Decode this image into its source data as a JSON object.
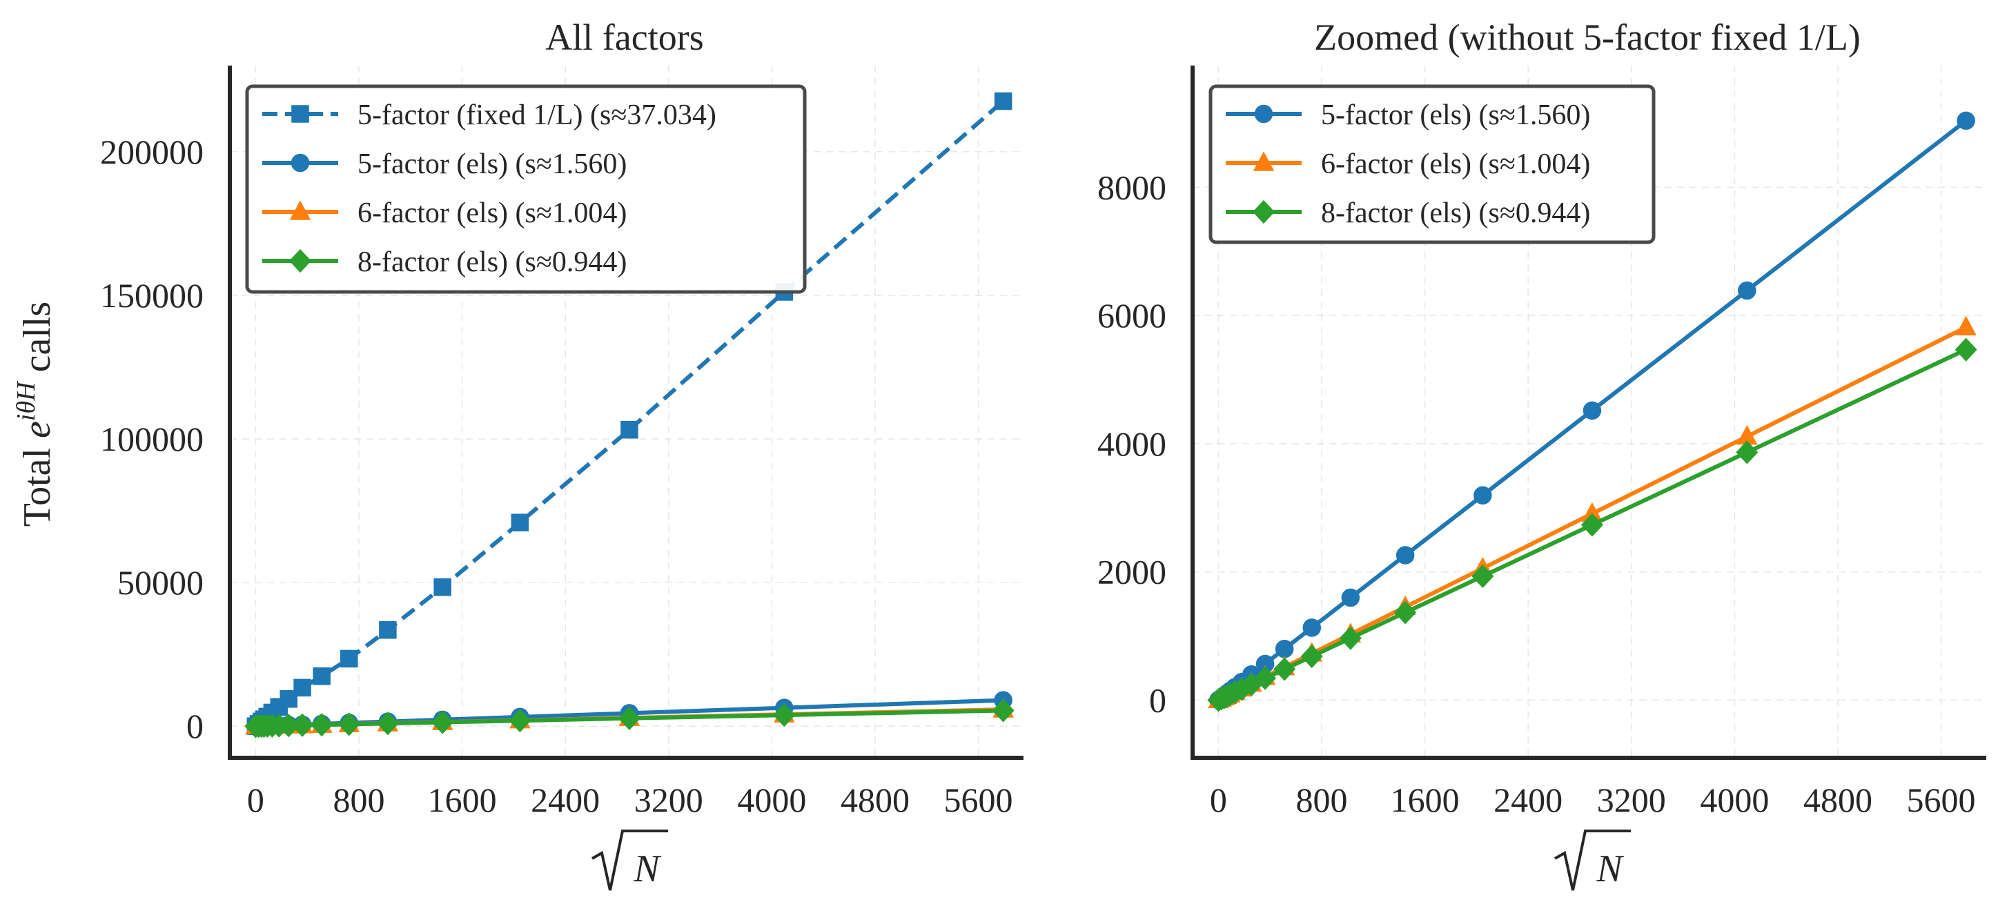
{
  "chart_data": [
    {
      "type": "line",
      "title": "All factors",
      "xlabel": "√N",
      "ylabel": "Total e^{iθH} calls",
      "xlim": [
        -200,
        5950
      ],
      "ylim": [
        -11000,
        230000
      ],
      "xticks": [
        0,
        800,
        1600,
        2400,
        3200,
        4000,
        4800,
        5600
      ],
      "xtick_labels": [
        "0",
        "800",
        "1600",
        "2400",
        "3200",
        "4000",
        "4800",
        "5600"
      ],
      "yticks": [
        0,
        50000,
        100000,
        150000,
        200000
      ],
      "ytick_labels": [
        "0",
        "50000",
        "100000",
        "150000",
        "200000"
      ],
      "grid": true,
      "legend_position": "top-left",
      "x": [
        0,
        22,
        45,
        64,
        90,
        128,
        181,
        256,
        362,
        512,
        724,
        1024,
        1448,
        2048,
        2896,
        4096,
        5793
      ],
      "series": [
        {
          "name": "5-factor (fixed 1/L) (s≈37.034)",
          "color": "#1f77b4",
          "marker": "square",
          "dashed": true,
          "values": [
            0,
            800,
            1650,
            2400,
            3340,
            4760,
            6700,
            9480,
            13400,
            17400,
            23500,
            33500,
            48400,
            70900,
            103200,
            151200,
            217600
          ]
        },
        {
          "name": "5-factor (els) (s≈1.560)",
          "color": "#1f77b4",
          "marker": "circle",
          "dashed": false,
          "values": [
            0,
            34,
            70,
            100,
            140,
            200,
            282,
            400,
            565,
            799,
            1130,
            1598,
            2260,
            3195,
            4518,
            6390,
            9040
          ]
        },
        {
          "name": "6-factor (els) (s≈1.004)",
          "color": "#ff7f0e",
          "marker": "triangle",
          "dashed": false,
          "values": [
            0,
            22,
            45,
            64,
            90,
            128,
            182,
            257,
            363,
            514,
            727,
            1028,
            1454,
            2056,
            2908,
            4112,
            5816
          ]
        },
        {
          "name": "8-factor (els) (s≈0.944)",
          "color": "#2ca02c",
          "marker": "diamond",
          "dashed": false,
          "values": [
            0,
            21,
            42,
            60,
            85,
            121,
            171,
            242,
            342,
            483,
            683,
            967,
            1367,
            1933,
            2734,
            3866,
            5468
          ]
        }
      ]
    },
    {
      "type": "line",
      "title": "Zoomed (without 5-factor fixed 1/L)",
      "xlabel": "√N",
      "ylabel": "",
      "xlim": [
        -200,
        5950
      ],
      "ylim": [
        -900,
        9900
      ],
      "xticks": [
        0,
        800,
        1600,
        2400,
        3200,
        4000,
        4800,
        5600
      ],
      "xtick_labels": [
        "0",
        "800",
        "1600",
        "2400",
        "3200",
        "4000",
        "4800",
        "5600"
      ],
      "yticks": [
        0,
        2000,
        4000,
        6000,
        8000
      ],
      "ytick_labels": [
        "0",
        "2000",
        "4000",
        "6000",
        "8000"
      ],
      "grid": true,
      "legend_position": "top-left",
      "x": [
        0,
        22,
        45,
        64,
        90,
        128,
        181,
        256,
        362,
        512,
        724,
        1024,
        1448,
        2048,
        2896,
        4096,
        5793
      ],
      "series": [
        {
          "name": "5-factor (els) (s≈1.560)",
          "color": "#1f77b4",
          "marker": "circle",
          "dashed": false,
          "values": [
            0,
            34,
            70,
            100,
            140,
            200,
            282,
            400,
            565,
            799,
            1130,
            1598,
            2260,
            3195,
            4518,
            6390,
            9040
          ]
        },
        {
          "name": "6-factor (els) (s≈1.004)",
          "color": "#ff7f0e",
          "marker": "triangle",
          "dashed": false,
          "values": [
            0,
            22,
            45,
            64,
            90,
            128,
            182,
            257,
            363,
            514,
            727,
            1028,
            1454,
            2056,
            2908,
            4112,
            5816
          ]
        },
        {
          "name": "8-factor (els) (s≈0.944)",
          "color": "#2ca02c",
          "marker": "diamond",
          "dashed": false,
          "values": [
            0,
            21,
            42,
            60,
            85,
            121,
            171,
            242,
            342,
            483,
            683,
            967,
            1367,
            1933,
            2734,
            3866,
            5468
          ]
        }
      ]
    }
  ]
}
